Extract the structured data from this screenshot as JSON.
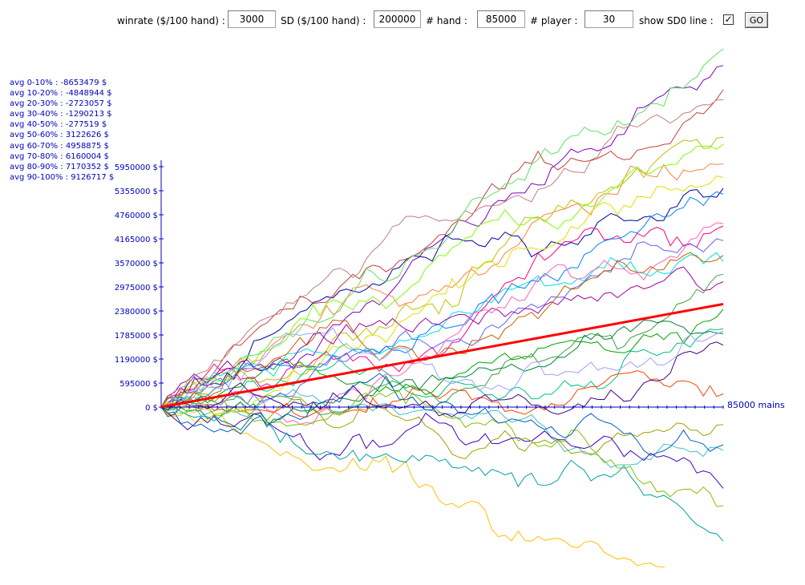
{
  "controls": {
    "winrate": {
      "label": "winrate ($/100 hand) :",
      "value": "3000"
    },
    "sd": {
      "label": "SD ($/100 hand) :",
      "value": "200000"
    },
    "hands": {
      "label": "# hand :",
      "value": "85000"
    },
    "players": {
      "label": "# player :",
      "value": "30"
    },
    "sd0": {
      "label": "show SD0 line :",
      "checked": true
    },
    "go_label": "GO"
  },
  "averages": [
    "avg  0-10% : -8653479 $",
    "avg 10-20% : -4848944 $",
    "avg 20-30% : -2723057 $",
    "avg 30-40% : -1290213 $",
    "avg 40-50% : -277519 $",
    "avg 50-60% : 3122626 $",
    "avg 60-70% : 4958875 $",
    "avg 70-80% : 6160004 $",
    "avg 80-90% : 7170352 $",
    "avg 90-100% : 9126717 $"
  ],
  "chart_data": {
    "type": "line",
    "x_axis_label": "85000 mains",
    "x_range": [
      0,
      85000
    ],
    "y_ticks": [
      0,
      595000,
      1190000,
      1785000,
      2380000,
      2975000,
      3570000,
      4165000,
      4760000,
      5355000,
      5950000
    ],
    "y_tick_labels": [
      "0 $",
      "595000 $",
      "1190000 $",
      "1785000 $",
      "2380000 $",
      "2975000 $",
      "3570000 $",
      "4165000 $",
      "4760000 $",
      "5355000 $",
      "5950000 $"
    ],
    "expectation_line": {
      "color": "#ff0000",
      "start": [
        0,
        0
      ],
      "end": [
        85000,
        2550000
      ]
    },
    "player_count": 30,
    "step_hands": 1000,
    "step_sd": 131000,
    "palette": [
      "#00a000",
      "#8000c0",
      "#ff8040",
      "#40c0c0",
      "#c0c000",
      "#0000a0",
      "#ff0080",
      "#80ff00",
      "#00c080",
      "#c04040",
      "#6060ff",
      "#a0a000",
      "#ff4000",
      "#00e0e0",
      "#a000a0",
      "#40a040",
      "#ffc000",
      "#0080ff",
      "#c08080",
      "#008040",
      "#e0e000",
      "#4000c0",
      "#00a0a0",
      "#ff60c0",
      "#80c000",
      "#c06000",
      "#400080",
      "#60e060",
      "#0060c0",
      "#a0a0ff"
    ],
    "axis_color": "#0000c0"
  }
}
